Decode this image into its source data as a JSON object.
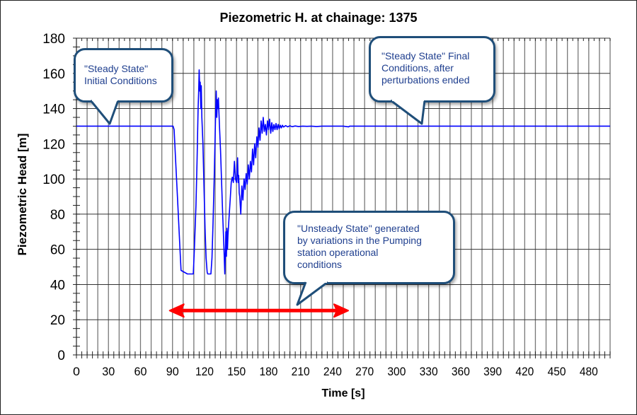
{
  "chart_data": {
    "type": "line",
    "title": "Piezometric H. at chainage: 1375",
    "xlabel": "Time [s]",
    "ylabel": "Piezometric Head [m]",
    "xlim": [
      0,
      500
    ],
    "ylim": [
      0,
      180
    ],
    "x_ticks": [
      0,
      30,
      60,
      90,
      120,
      150,
      180,
      210,
      240,
      270,
      300,
      330,
      360,
      390,
      420,
      450,
      480
    ],
    "y_ticks": [
      0,
      20,
      40,
      60,
      80,
      100,
      120,
      140,
      160,
      180
    ],
    "grid": true,
    "line_color": "#0000ff",
    "arrow_color": "#ff0000",
    "series": [
      {
        "name": "Piezometric Head",
        "x": [
          0,
          90.5,
          91.5,
          93,
          95,
          97,
          98,
          104,
          109.5,
          110.5,
          112,
          113,
          114,
          114.5,
          115,
          115.5,
          116,
          116.5,
          117,
          117.5,
          118.5,
          119.5,
          120.5,
          121.5,
          122.5,
          123,
          124,
          126,
          127,
          128,
          129,
          130,
          130.5,
          131,
          131.5,
          132,
          132.5,
          133,
          133.5,
          134,
          135,
          136,
          137,
          138,
          138.5,
          139,
          139.5,
          140,
          140.5,
          141,
          141.5,
          142,
          143,
          144,
          145,
          146,
          147,
          148,
          149,
          150,
          151,
          151.5,
          152,
          152.5,
          153,
          154,
          155,
          156,
          157,
          158,
          159,
          160,
          161,
          162,
          163,
          164,
          165,
          166,
          167,
          168,
          169,
          170,
          171,
          172,
          173,
          174,
          175,
          176,
          177,
          178,
          179,
          180,
          181,
          182,
          183,
          184,
          185,
          186,
          187,
          188,
          189,
          190,
          191,
          192,
          193,
          194,
          196,
          198,
          200,
          202,
          205,
          208,
          212,
          216,
          220,
          225,
          230,
          240,
          250,
          255,
          256,
          260,
          500
        ],
        "y": [
          130,
          130,
          128,
          110,
          85,
          60,
          48,
          46,
          46,
          60,
          85,
          110,
          140,
          150,
          162,
          150,
          155,
          140,
          153,
          135,
          120,
          96,
          72,
          55,
          47,
          46,
          46,
          46,
          55,
          75,
          98,
          125,
          140,
          150,
          135,
          145,
          140,
          146,
          138,
          130,
          116,
          98,
          80,
          64,
          55,
          46,
          58,
          70,
          56,
          72,
          60,
          68,
          78,
          88,
          98,
          101,
          98,
          110,
          100,
          98,
          112,
          98,
          102,
          92,
          90,
          80,
          96,
          88,
          100,
          94,
          103,
          97,
          108,
          100,
          110,
          104,
          117,
          108,
          120,
          112,
          124,
          118,
          129,
          122,
          133,
          126,
          135,
          127,
          131,
          125,
          133,
          128,
          134,
          126,
          132,
          127,
          131,
          128,
          131.5,
          128,
          131,
          128.5,
          130.5,
          129,
          130.5,
          129.5,
          130.3,
          129.6,
          130.2,
          129.7,
          130.1,
          129.8,
          130,
          129.9,
          130,
          129.8,
          130,
          130,
          130,
          129.6,
          130,
          130,
          130
        ]
      }
    ],
    "annotations": [
      {
        "id": "initial",
        "lines": [
          "\"Steady State\"",
          "Initial Conditions"
        ],
        "points_to": [
          30,
          130
        ]
      },
      {
        "id": "final",
        "lines": [
          "\"Steady State\" Final",
          "Conditions, after",
          "perturbations ended"
        ],
        "points_to": [
          325,
          130
        ]
      },
      {
        "id": "unsteady",
        "lines": [
          "\"Unsteady State\" generated",
          "by variations in the Pumping",
          "station operational",
          "conditions"
        ],
        "points_to": [
          208,
          28
        ]
      }
    ],
    "range_arrow": {
      "from": 90,
      "to": 252,
      "y": 26
    }
  }
}
